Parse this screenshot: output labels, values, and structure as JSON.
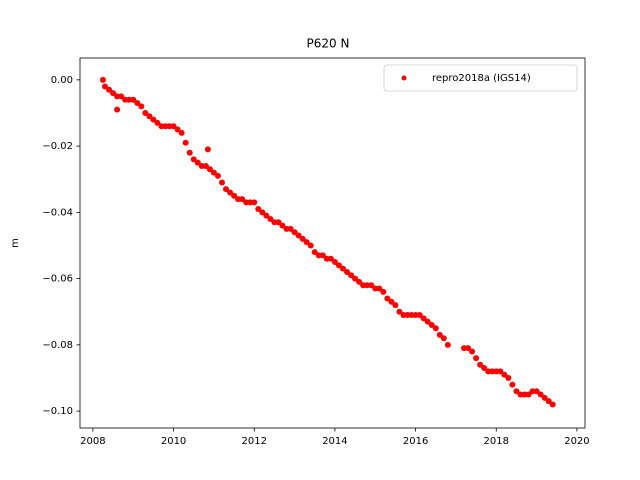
{
  "chart_data": {
    "type": "scatter",
    "title": "P620 N",
    "y_label": "m",
    "xlim": [
      2007.68,
      2020.2
    ],
    "ylim": [
      -0.1051,
      0.0066
    ],
    "xticks": [
      2008,
      2010,
      2012,
      2014,
      2016,
      2018,
      2020
    ],
    "yticks": [
      {
        "value": 0,
        "label": "0.00"
      },
      {
        "value": -0.02,
        "label": "−0.02"
      },
      {
        "value": -0.04,
        "label": "−0.04"
      },
      {
        "value": -0.06,
        "label": "−0.06"
      },
      {
        "value": -0.08,
        "label": "−0.08"
      },
      {
        "value": -0.1,
        "label": "−0.10"
      }
    ],
    "legend": "upper right",
    "grid": false,
    "series": [
      {
        "name": "repro2018a (IGS14)",
        "color": "#ff0000",
        "x": [
          2008.25,
          2008.3,
          2008.4,
          2008.5,
          2008.6,
          2008.6,
          2008.7,
          2008.8,
          2008.9,
          2009.0,
          2009.1,
          2009.2,
          2009.3,
          2009.4,
          2009.5,
          2009.6,
          2009.7,
          2009.8,
          2009.9,
          2010.0,
          2010.1,
          2010.2,
          2010.3,
          2010.4,
          2010.5,
          2010.6,
          2010.7,
          2010.8,
          2010.85,
          2010.9,
          2011.0,
          2011.1,
          2011.2,
          2011.3,
          2011.4,
          2011.5,
          2011.6,
          2011.7,
          2011.8,
          2011.9,
          2012.0,
          2012.1,
          2012.2,
          2012.3,
          2012.4,
          2012.5,
          2012.6,
          2012.7,
          2012.8,
          2012.9,
          2013.0,
          2013.1,
          2013.2,
          2013.3,
          2013.4,
          2013.5,
          2013.6,
          2013.7,
          2013.8,
          2013.9,
          2014.0,
          2014.1,
          2014.2,
          2014.3,
          2014.4,
          2014.5,
          2014.6,
          2014.7,
          2014.8,
          2014.9,
          2015.0,
          2015.1,
          2015.2,
          2015.3,
          2015.4,
          2015.5,
          2015.6,
          2015.7,
          2015.8,
          2015.9,
          2016.0,
          2016.1,
          2016.2,
          2016.3,
          2016.4,
          2016.5,
          2016.6,
          2016.7,
          2016.8,
          2017.2,
          2017.3,
          2017.4,
          2017.5,
          2017.6,
          2017.7,
          2017.8,
          2017.9,
          2018.0,
          2018.1,
          2018.2,
          2018.3,
          2018.4,
          2018.5,
          2018.6,
          2018.7,
          2018.8,
          2018.9,
          2019.0,
          2019.1,
          2019.2,
          2019.3,
          2019.4
        ],
        "values": [
          0.0,
          -0.002,
          -0.003,
          -0.004,
          -0.005,
          -0.009,
          -0.005,
          -0.006,
          -0.006,
          -0.006,
          -0.007,
          -0.008,
          -0.01,
          -0.011,
          -0.012,
          -0.013,
          -0.014,
          -0.014,
          -0.014,
          -0.014,
          -0.015,
          -0.016,
          -0.019,
          -0.022,
          -0.024,
          -0.025,
          -0.026,
          -0.026,
          -0.021,
          -0.027,
          -0.028,
          -0.029,
          -0.031,
          -0.033,
          -0.034,
          -0.035,
          -0.036,
          -0.036,
          -0.037,
          -0.037,
          -0.037,
          -0.039,
          -0.04,
          -0.041,
          -0.042,
          -0.043,
          -0.043,
          -0.044,
          -0.045,
          -0.045,
          -0.046,
          -0.047,
          -0.048,
          -0.049,
          -0.05,
          -0.052,
          -0.053,
          -0.053,
          -0.054,
          -0.054,
          -0.055,
          -0.056,
          -0.057,
          -0.058,
          -0.059,
          -0.06,
          -0.061,
          -0.062,
          -0.062,
          -0.062,
          -0.063,
          -0.063,
          -0.064,
          -0.066,
          -0.067,
          -0.068,
          -0.07,
          -0.071,
          -0.071,
          -0.071,
          -0.071,
          -0.071,
          -0.072,
          -0.073,
          -0.074,
          -0.075,
          -0.077,
          -0.078,
          -0.08,
          -0.081,
          -0.081,
          -0.082,
          -0.084,
          -0.086,
          -0.087,
          -0.088,
          -0.088,
          -0.088,
          -0.088,
          -0.089,
          -0.09,
          -0.092,
          -0.094,
          -0.095,
          -0.095,
          -0.095,
          -0.094,
          -0.094,
          -0.095,
          -0.096,
          -0.097,
          -0.098
        ]
      }
    ]
  }
}
